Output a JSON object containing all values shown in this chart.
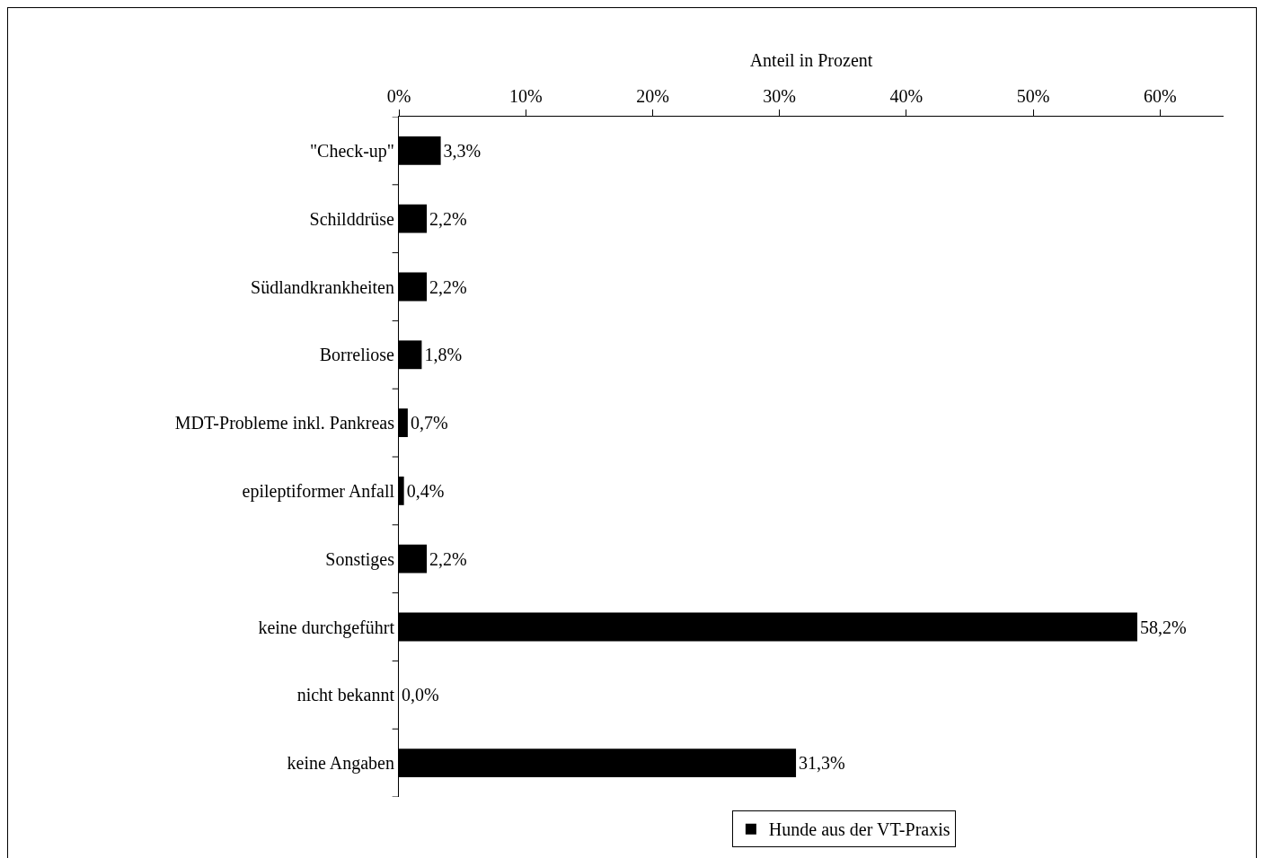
{
  "chart_data": {
    "type": "bar",
    "orientation": "horizontal",
    "xlabel": "Anteil in Prozent",
    "categories": [
      "\"Check-up\"",
      "Schilddrüse",
      "Südlandkrankheiten",
      "Borreliose",
      "MDT-Probleme inkl. Pankreas",
      "epileptiformer Anfall",
      "Sonstiges",
      "keine durchgeführt",
      "nicht bekannt",
      "keine Angaben"
    ],
    "series": [
      {
        "name": "Hunde aus der VT-Praxis",
        "color": "#000000",
        "values": [
          3.3,
          2.2,
          2.2,
          1.8,
          0.7,
          0.4,
          2.2,
          58.2,
          0.0,
          31.3
        ],
        "value_labels": [
          "3,3%",
          "2,2%",
          "2,2%",
          "1,8%",
          "0,7%",
          "0,4%",
          "2,2%",
          "58,2%",
          "0,0%",
          "31,3%"
        ]
      }
    ],
    "xlim": [
      0,
      65
    ],
    "xticks": [
      {
        "value": 0,
        "label": "0%"
      },
      {
        "value": 10,
        "label": "10%"
      },
      {
        "value": 20,
        "label": "20%"
      },
      {
        "value": 30,
        "label": "30%"
      },
      {
        "value": 40,
        "label": "40%"
      },
      {
        "value": 50,
        "label": "50%"
      },
      {
        "value": 60,
        "label": "60%"
      }
    ],
    "grid": false,
    "legend": "bottom right"
  }
}
